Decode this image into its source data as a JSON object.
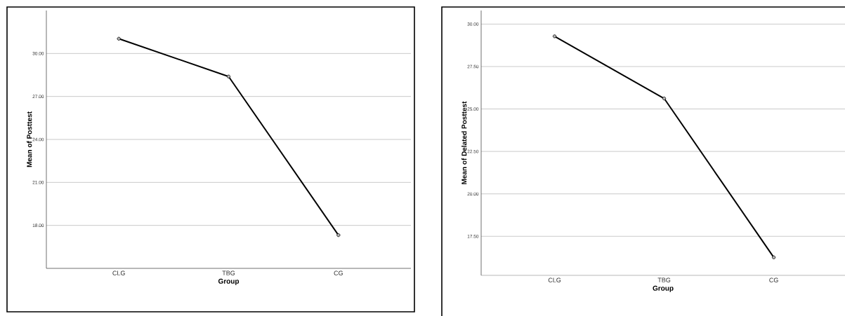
{
  "chart_data": [
    {
      "type": "line",
      "categories": [
        "CLG",
        "TBG",
        "CG"
      ],
      "values": [
        31.03,
        28.39,
        17.32
      ],
      "color": "#000000",
      "xlabel": "Group",
      "ylabel": "Mean of Posttest",
      "ylim": [
        15,
        33
      ],
      "yticks": [
        {
          "value": 18,
          "label": "18.00"
        },
        {
          "value": 21,
          "label": "21.00"
        },
        {
          "value": 24,
          "label": "24.00"
        },
        {
          "value": 27,
          "label": "27.00"
        },
        {
          "value": 30,
          "label": "30.00"
        }
      ],
      "grid": "y",
      "marker": "circle",
      "line_style": "solid"
    },
    {
      "type": "line",
      "categories": [
        "CLG",
        "TBG",
        "CG"
      ],
      "values": [
        29.28,
        25.62,
        16.26
      ],
      "color": "#000000",
      "xlabel": "Group",
      "ylabel": "Mean of Delated Posttest",
      "ylim": [
        15.2,
        30.8
      ],
      "yticks": [
        {
          "value": 17.5,
          "label": "17.50"
        },
        {
          "value": 20,
          "label": "20.00"
        },
        {
          "value": 22.5,
          "label": "22.50"
        },
        {
          "value": 25,
          "label": "25.00"
        },
        {
          "value": 27.5,
          "label": "27.50"
        },
        {
          "value": 30,
          "label": "30.00"
        }
      ],
      "grid": "y",
      "marker": "circle",
      "line_style": "solid"
    }
  ]
}
